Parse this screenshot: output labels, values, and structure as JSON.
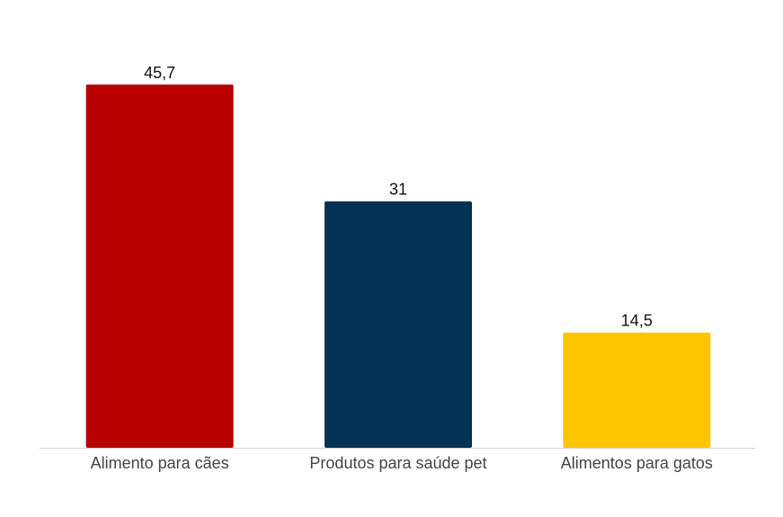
{
  "chart_data": {
    "type": "bar",
    "categories": [
      "Alimento para cães",
      "Produtos para saúde pet",
      "Alimentos para gatos"
    ],
    "values": [
      45.7,
      31,
      14.5
    ],
    "value_labels": [
      "45,7",
      "31",
      "14,5"
    ],
    "colors": [
      "#b80000",
      "#023254",
      "#fdc500"
    ]
  }
}
